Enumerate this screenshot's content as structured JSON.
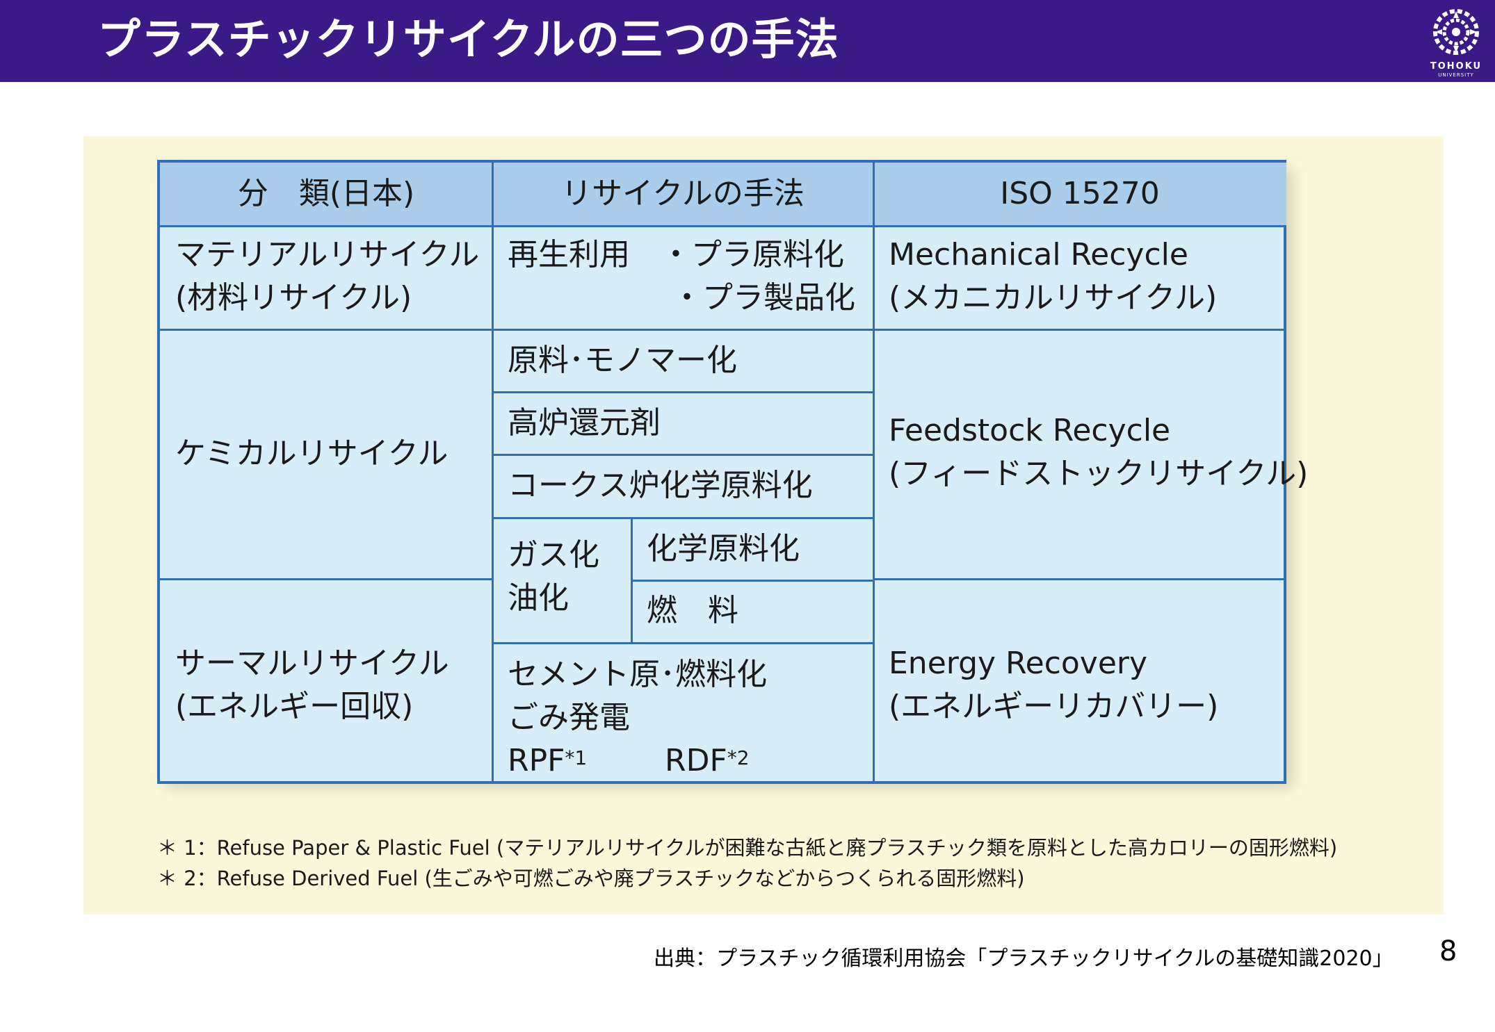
{
  "header": {
    "title": "プラスチックリサイクルの三つの手法",
    "logo_text": "TOHOKU",
    "logo_subtext": "UNIVERSITY"
  },
  "table": {
    "headers": [
      "分　類(日本)",
      "リサイクルの手法",
      "ISO 15270"
    ],
    "material": {
      "category_line1": "マテリアルリサイクル",
      "category_line2": "(材料リサイクル)",
      "method_line1": "再生利用　・プラ原料化",
      "method_line2": "・プラ製品化",
      "iso_line1": "Mechanical Recycle",
      "iso_line2": "(メカニカルリサイクル)"
    },
    "chemical": {
      "category": "ケミカルリサイクル",
      "method_monomer": "原料･モノマー化",
      "method_blast_furnace": "高炉還元剤",
      "method_coke_oven": "コークス炉化学原料化",
      "method_gas_line1": "ガス化",
      "method_gas_line2": "油化",
      "method_chemical_feedstock": "化学原料化",
      "method_fuel": "燃　料",
      "iso_line1": "Feedstock Recycle",
      "iso_line2": "(フィードストックリサイクル)"
    },
    "thermal": {
      "category_line1": "サーマルリサイクル",
      "category_line2": "(エネルギー回収)",
      "method_line1": "セメント原･燃料化",
      "method_line2": "ごみ発電",
      "rpf": "RPF",
      "rpf_note": "*1",
      "rdf": "RDF",
      "rdf_note": "*2",
      "iso_line1": "Energy Recovery",
      "iso_line2": "(エネルギーリカバリー)"
    }
  },
  "notes": [
    "＊ 1：Refuse Paper & Plastic Fuel (マテリアルリサイクルが困難な古紙と廃プラスチック類を原料とした高カロリーの固形燃料)",
    "＊ 2：Refuse Derived Fuel (生ごみや可燃ごみや廃プラスチックなどからつくられる固形燃料)"
  ],
  "source": "出典：プラスチック循環利用協会「プラスチックリサイクルの基礎知識2020」",
  "page_number": "8",
  "colors": {
    "header_bg": "#3a1a87",
    "panel_bg": "#fbf7da",
    "table_border": "#2f6fb6",
    "table_header_bg": "#a9cdea",
    "table_cell_bg": "#d7eef9"
  }
}
